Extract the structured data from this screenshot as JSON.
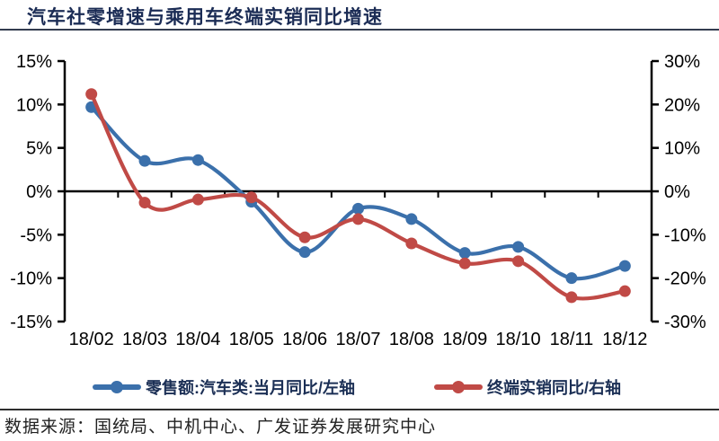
{
  "header": {
    "title": "汽车社零增速与乘用车终端实销同比增速"
  },
  "footer": {
    "source": "数据来源：国统局、中机中心、广发证券发展研究中心"
  },
  "chart_data": {
    "type": "line",
    "title": "汽车社零增速与乘用车终端实销同比增速",
    "categories": [
      "18/02",
      "18/03",
      "18/04",
      "18/05",
      "18/06",
      "18/07",
      "18/08",
      "18/09",
      "18/10",
      "18/11",
      "18/12"
    ],
    "series": [
      {
        "name": "零售额:汽车类:当月同比/左轴",
        "axis": "left",
        "color": "#3b70ab",
        "marker": "circle",
        "values": [
          9.7,
          3.5,
          3.6,
          -1.2,
          -7.0,
          -2.0,
          -3.2,
          -7.1,
          -6.4,
          -10.0,
          -8.6
        ]
      },
      {
        "name": "终端实销同比/右轴",
        "axis": "right",
        "color": "#c04a46",
        "marker": "circle",
        "values": [
          22.4,
          -2.6,
          -1.9,
          -1.4,
          -10.6,
          -6.4,
          -12.0,
          -16.6,
          -16.1,
          -24.4,
          -23.0
        ]
      }
    ],
    "left_axis": {
      "min": -15,
      "max": 15,
      "tick_labels": [
        "15%",
        "10%",
        "5%",
        "0%",
        "-5%",
        "-10%",
        "-15%"
      ]
    },
    "right_axis": {
      "min": -30,
      "max": 30,
      "tick_labels": [
        "30%",
        "20%",
        "10%",
        "0%",
        "-10%",
        "-20%",
        "-30%"
      ]
    },
    "grid": "off",
    "legend_position": "bottom",
    "line_smoothing": "smooth"
  }
}
